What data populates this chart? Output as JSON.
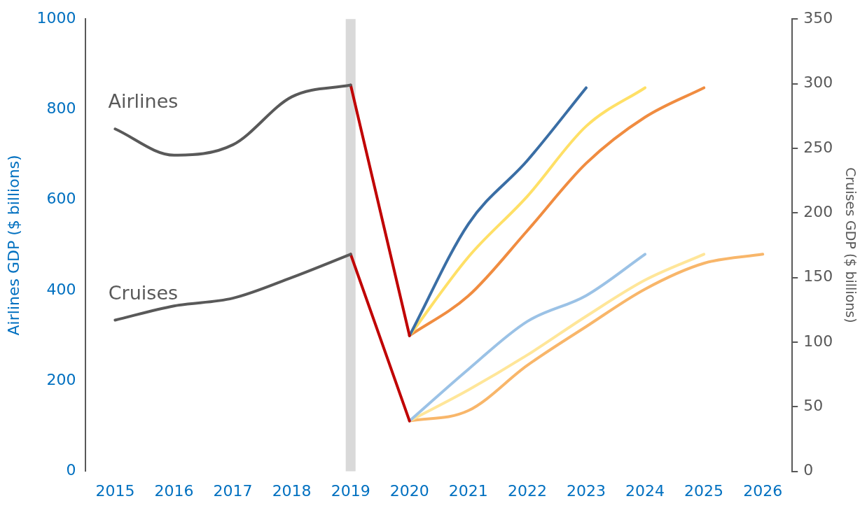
{
  "chart_data": {
    "type": "line",
    "categories": [
      "2015",
      "2016",
      "2017",
      "2018",
      "2019",
      "2020",
      "2021",
      "2022",
      "2023",
      "2024",
      "2025",
      "2026"
    ],
    "ylabel": "Airlines GDP ($ billions)",
    "y2label": "Cruises GDP ($ billions)",
    "ylim": [
      0,
      1000
    ],
    "yticks": [
      0,
      200,
      400,
      600,
      800,
      1000
    ],
    "y2lim": [
      0,
      350
    ],
    "y2ticks": [
      0,
      50,
      100,
      150,
      200,
      250,
      300,
      350
    ],
    "grid": false,
    "legend": false,
    "marker": "none",
    "ref_lines": [
      {
        "axis": "x",
        "value": "2019",
        "color": "#d9d9d9"
      }
    ],
    "series": [
      {
        "name": "Airlines",
        "color": "#595959",
        "values": [
          757,
          699,
          722,
          828,
          854,
          null,
          null,
          null,
          null,
          null,
          null,
          null
        ]
      },
      {
        "color": "#c00000",
        "values": [
          null,
          null,
          null,
          null,
          854,
          300,
          null,
          null,
          null,
          null,
          null,
          null
        ]
      },
      {
        "color": "#3a6ea5",
        "values": [
          null,
          null,
          null,
          null,
          null,
          300,
          547,
          687,
          848,
          null,
          null,
          null
        ]
      },
      {
        "color": "#ffe066",
        "values": [
          null,
          null,
          null,
          null,
          null,
          300,
          474,
          608,
          763,
          848,
          null,
          null
        ]
      },
      {
        "color": "#f08c40",
        "values": [
          null,
          null,
          null,
          null,
          null,
          300,
          388,
          532,
          681,
          783,
          848,
          null
        ]
      },
      {
        "name": "Cruises",
        "axis": "y2",
        "color": "#595959",
        "values": [
          117,
          128,
          134,
          150,
          168,
          null,
          null,
          null,
          null,
          null,
          null,
          null
        ]
      },
      {
        "axis": "y2",
        "color": "#c00000",
        "values": [
          null,
          null,
          null,
          null,
          168,
          39,
          null,
          null,
          null,
          null,
          null,
          null
        ]
      },
      {
        "axis": "y2",
        "color": "#9bc2e6",
        "values": [
          null,
          null,
          null,
          null,
          null,
          39,
          79,
          116,
          136,
          168,
          null,
          null
        ]
      },
      {
        "axis": "y2",
        "color": "#ffe699",
        "values": [
          null,
          null,
          null,
          null,
          null,
          39,
          63,
          90,
          120,
          148,
          168,
          null
        ]
      },
      {
        "axis": "y2",
        "color": "#f8b66a",
        "values": [
          null,
          null,
          null,
          null,
          null,
          39,
          47,
          82,
          112,
          141,
          161,
          168
        ]
      }
    ]
  }
}
